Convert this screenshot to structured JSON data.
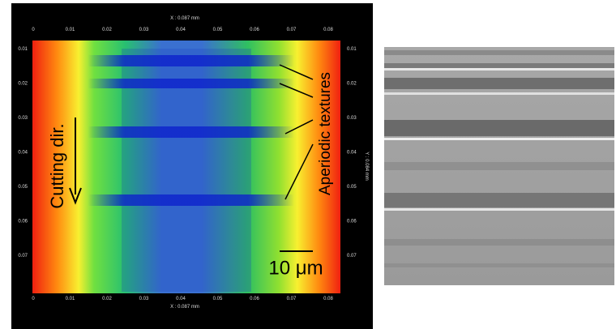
{
  "left_panel": {
    "x_axis_label_top": "X : 0.087 mm",
    "x_axis_label_bottom": "X : 0.087 mm",
    "y_axis_label": "Y : 0.084 mm",
    "x_ticks": [
      "0",
      "0.01",
      "0.02",
      "0.03",
      "0.04",
      "0.05",
      "0.06",
      "0.07",
      "0.08"
    ],
    "y_ticks": [
      "0.01",
      "0.02",
      "0.03",
      "0.04",
      "0.05",
      "0.06",
      "0.07"
    ],
    "annotations": {
      "cutting_direction": "Cutting dir.",
      "textures": "Aperiodic textures",
      "scale_bar": "10 μm"
    }
  }
}
